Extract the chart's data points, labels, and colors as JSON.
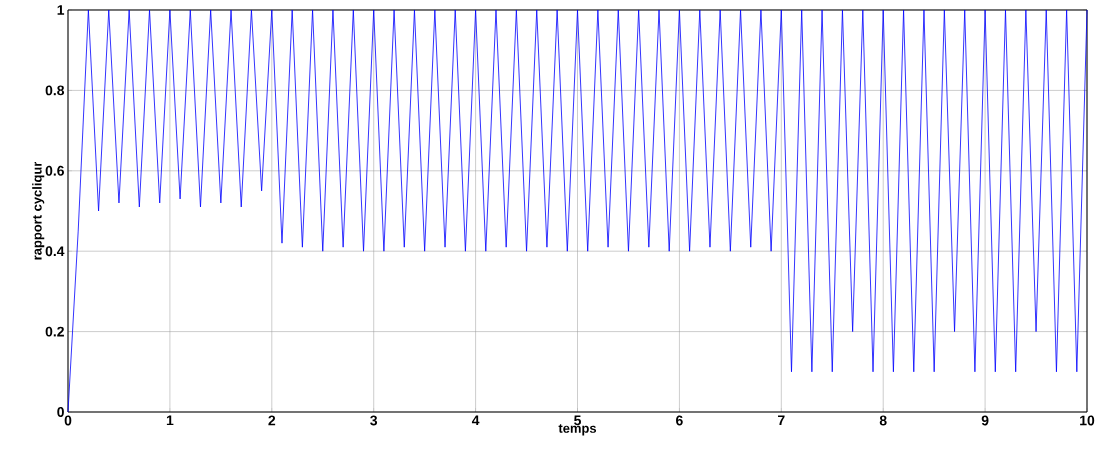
{
  "chart_data": {
    "type": "line",
    "xlabel": "temps",
    "ylabel": "rapport cycliqur",
    "xlim": [
      0,
      10
    ],
    "ylim": [
      0,
      1
    ],
    "xticks": [
      0,
      1,
      2,
      3,
      4,
      5,
      6,
      7,
      8,
      9,
      10
    ],
    "yticks": [
      0,
      0.2,
      0.4,
      0.6,
      0.8,
      1
    ],
    "grid": true,
    "x": [
      0,
      0.1,
      0.2,
      0.3,
      0.4,
      0.5,
      0.6,
      0.7,
      0.8,
      0.9,
      1,
      1.1,
      1.2,
      1.3,
      1.4,
      1.5,
      1.6,
      1.7,
      1.8,
      1.9,
      2,
      2.1,
      2.2,
      2.3,
      2.4,
      2.5,
      2.6,
      2.7,
      2.8,
      2.9,
      3,
      3.1,
      3.2,
      3.3,
      3.4,
      3.5,
      3.6,
      3.7,
      3.8,
      3.9,
      4,
      4.1,
      4.2,
      4.3,
      4.4,
      4.5,
      4.6,
      4.7,
      4.8,
      4.9,
      5,
      5.1,
      5.2,
      5.3,
      5.4,
      5.5,
      5.6,
      5.7,
      5.8,
      5.9,
      6,
      6.1,
      6.2,
      6.3,
      6.4,
      6.5,
      6.6,
      6.7,
      6.8,
      6.9,
      7,
      7.1,
      7.2,
      7.3,
      7.4,
      7.5,
      7.6,
      7.7,
      7.8,
      7.9,
      8,
      8.1,
      8.2,
      8.3,
      8.4,
      8.5,
      8.6,
      8.7,
      8.8,
      8.9,
      9,
      9.1,
      9.2,
      9.3,
      9.4,
      9.5,
      9.6,
      9.7,
      9.8,
      9.9,
      10
    ],
    "series": [
      {
        "color": "#0000ff",
        "values": [
          0,
          0.45,
          1,
          0.5,
          1,
          0.52,
          1,
          0.51,
          1,
          0.52,
          1,
          0.53,
          1,
          0.51,
          1,
          0.52,
          1,
          0.51,
          1,
          0.55,
          1,
          0.42,
          1,
          0.41,
          1,
          0.4,
          1,
          0.41,
          1,
          0.4,
          1,
          0.4,
          1,
          0.41,
          1,
          0.4,
          1,
          0.41,
          1,
          0.4,
          1,
          0.4,
          1,
          0.41,
          1,
          0.4,
          1,
          0.41,
          1,
          0.4,
          1,
          0.4,
          1,
          0.41,
          1,
          0.4,
          1,
          0.41,
          1,
          0.4,
          1,
          0.4,
          1,
          0.41,
          1,
          0.4,
          1,
          0.41,
          1,
          0.4,
          1,
          0.1,
          1,
          0.1,
          1,
          0.1,
          1,
          0.2,
          1,
          0.1,
          1,
          0.1,
          1,
          0.1,
          1,
          0.1,
          1,
          0.2,
          1,
          0.1,
          1,
          0.1,
          1,
          0.1,
          1,
          0.2,
          1,
          0.1,
          1,
          0.1,
          1
        ]
      }
    ]
  }
}
